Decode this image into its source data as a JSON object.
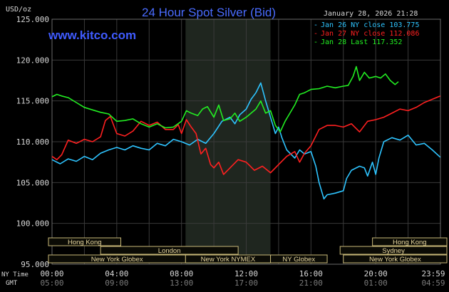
{
  "header": {
    "title": "24 Hour Spot Silver (Bid)",
    "unit": "USD/oz",
    "timestamp": "January 28, 2026 21:28",
    "watermark": "www.kitco.com",
    "time_row_label_ny": "NY Time",
    "time_row_label_gmt": "GMT"
  },
  "colors": {
    "background": "#000000",
    "plot_background": "#000000",
    "grid": "#3a3a3a",
    "session_shade": "#1f261f",
    "title": "#4a6cff",
    "watermark": "#3f5bff",
    "text": "#d8d8d8",
    "jan26": "#2ec4ff",
    "jan27": "#ff2020",
    "jan28": "#22ee22",
    "session_fill": "#0b0b05",
    "session_border": "#c8b878",
    "session_text": "#ead9a0"
  },
  "chart_data": {
    "type": "line",
    "title": "24 Hour Spot Silver (Bid)",
    "ylabel": "USD/oz",
    "ylim": [
      95,
      125
    ],
    "xlim_hours": [
      0,
      24
    ],
    "y_ticks": [
      "125.000",
      "120.000",
      "115.000",
      "110.000",
      "105.000",
      "100.000",
      "95.000"
    ],
    "y_tick_values": [
      125,
      120,
      115,
      110,
      105,
      100,
      95
    ],
    "x_tick_hours": [
      0,
      4,
      8,
      12,
      16,
      20,
      24
    ],
    "x_ticks_ny": [
      "00:00",
      "04:00",
      "08:00",
      "12:00",
      "16:00",
      "20:00",
      "23:59"
    ],
    "x_ticks_gmt": [
      "05:00",
      "09:00",
      "13:00",
      "17:00",
      "21:00",
      "01:00",
      "04:59"
    ],
    "grid": true,
    "legend_position": "top-right",
    "series": [
      {
        "name": "Jan 26 NY close 103.775",
        "color_key": "jan26",
        "x": [
          0,
          0.5,
          1,
          1.5,
          2,
          2.5,
          3,
          3.5,
          4,
          4.5,
          5,
          5.5,
          6,
          6.5,
          7,
          7.5,
          8,
          8.5,
          9,
          9.5,
          10,
          10.5,
          11,
          11.3,
          11.6,
          12,
          12.3,
          12.6,
          12.9,
          13.2,
          13.5,
          13.8,
          14,
          14.2,
          14.5,
          15,
          15.3,
          15.6,
          16,
          16.3,
          16.5,
          16.8,
          17,
          17.5,
          18,
          18.2,
          18.5,
          19,
          19.3,
          19.5,
          19.8,
          20,
          20.2,
          20.5,
          21,
          21.5,
          22,
          22.5,
          23,
          23.5,
          23.99
        ],
        "values": [
          107.8,
          107.3,
          107.9,
          107.6,
          108.2,
          107.8,
          108.6,
          109.0,
          109.3,
          109.0,
          109.5,
          109.2,
          109.0,
          109.8,
          109.5,
          110.3,
          110.0,
          109.6,
          110.3,
          109.8,
          111.0,
          112.5,
          113.0,
          112.2,
          113.3,
          114.0,
          115.2,
          116.0,
          117.2,
          115.0,
          113.0,
          111.0,
          111.8,
          110.5,
          109.0,
          108.0,
          109.0,
          108.5,
          108.8,
          107.0,
          105.0,
          103.0,
          103.5,
          103.7,
          104.0,
          105.5,
          106.5,
          107.0,
          106.8,
          105.8,
          107.5,
          106.0,
          108.0,
          110.0,
          110.5,
          110.2,
          110.8,
          109.6,
          109.8,
          109.0,
          108.1
        ]
      },
      {
        "name": "Jan 27 NY close 112.086",
        "color_key": "jan27",
        "x": [
          0,
          0.3,
          0.6,
          1,
          1.5,
          2,
          2.5,
          3,
          3.3,
          3.6,
          4,
          4.5,
          5,
          5.5,
          6,
          6.5,
          7,
          7.5,
          7.8,
          8,
          8.3,
          8.6,
          8.9,
          9.2,
          9.5,
          9.8,
          10,
          10.3,
          10.6,
          11,
          11.5,
          12,
          12.5,
          13,
          13.5,
          14,
          14.5,
          15,
          15.3,
          15.6,
          16,
          16.5,
          17,
          17.5,
          18,
          18.5,
          19,
          19.5,
          20,
          20.5,
          21,
          21.5,
          22,
          22.5,
          23,
          23.5,
          23.99
        ],
        "values": [
          108.2,
          107.8,
          108.4,
          110.2,
          109.8,
          110.3,
          110.0,
          110.6,
          112.6,
          113.1,
          111.0,
          110.7,
          111.3,
          112.5,
          112.0,
          112.4,
          111.5,
          111.5,
          112.1,
          111.0,
          112.7,
          111.8,
          111.0,
          108.5,
          109.2,
          107.2,
          106.8,
          107.5,
          106.0,
          106.8,
          107.8,
          107.5,
          106.5,
          107.0,
          106.2,
          107.2,
          108.2,
          108.8,
          107.5,
          108.6,
          109.5,
          111.5,
          112.0,
          112.0,
          111.8,
          112.2,
          111.2,
          112.5,
          112.7,
          113.0,
          113.5,
          114.0,
          113.8,
          114.2,
          114.8,
          115.2,
          115.6
        ]
      },
      {
        "name": "Jan 28 Last 117.352",
        "color_key": "jan28",
        "x": [
          0,
          0.3,
          0.6,
          1,
          1.5,
          2,
          2.5,
          3,
          3.5,
          4,
          4.5,
          5,
          5.5,
          6,
          6.5,
          7,
          7.5,
          8,
          8.3,
          8.6,
          9,
          9.3,
          9.6,
          10,
          10.3,
          10.6,
          11,
          11.3,
          11.6,
          12,
          12.3,
          12.6,
          12.9,
          13.2,
          13.5,
          13.8,
          14.1,
          14.4,
          14.7,
          15,
          15.3,
          15.6,
          16,
          16.5,
          17,
          17.5,
          18,
          18.3,
          18.6,
          18.8,
          19,
          19.3,
          19.6,
          20,
          20.3,
          20.6,
          20.9,
          21.2,
          21.4
        ],
        "values": [
          115.5,
          115.8,
          115.6,
          115.4,
          114.8,
          114.2,
          113.9,
          113.6,
          113.4,
          112.5,
          112.6,
          112.8,
          112.2,
          111.8,
          112.2,
          111.7,
          111.8,
          112.5,
          113.8,
          113.5,
          113.2,
          114.0,
          114.3,
          113.0,
          114.5,
          112.6,
          112.8,
          113.5,
          112.5,
          113.0,
          113.5,
          114.0,
          115.0,
          113.5,
          113.8,
          112.0,
          111.2,
          112.5,
          113.5,
          114.5,
          115.8,
          116.0,
          116.4,
          116.5,
          116.8,
          116.6,
          116.8,
          116.9,
          118.0,
          119.2,
          117.5,
          118.5,
          117.8,
          118.0,
          117.8,
          118.3,
          117.5,
          117.0,
          117.35
        ]
      }
    ]
  },
  "shaded_session": {
    "start_hour": 8.25,
    "end_hour": 13.5
  },
  "sessions": [
    {
      "label": "Hong Kong",
      "start_hour": -1,
      "end_hour": 4.25,
      "row": 0
    },
    {
      "label": "London",
      "start_hour": 3,
      "end_hour": 11.5,
      "row": 1
    },
    {
      "label": "New York Globex",
      "start_hour": -1,
      "end_hour": 8.25,
      "row": 2
    },
    {
      "label": "New York NYMEX",
      "start_hour": 8.25,
      "end_hour": 13.5,
      "row": 2
    },
    {
      "label": "NY Globex",
      "start_hour": 13.5,
      "end_hour": 17.0,
      "row": 2
    },
    {
      "label": "Hong Kong",
      "start_hour": 19.8,
      "end_hour": 25,
      "row": 0
    },
    {
      "label": "Sydney",
      "start_hour": 17.8,
      "end_hour": 25,
      "row": 1
    },
    {
      "label": "New York Globex",
      "start_hour": 18.0,
      "end_hour": 25,
      "row": 2
    }
  ]
}
